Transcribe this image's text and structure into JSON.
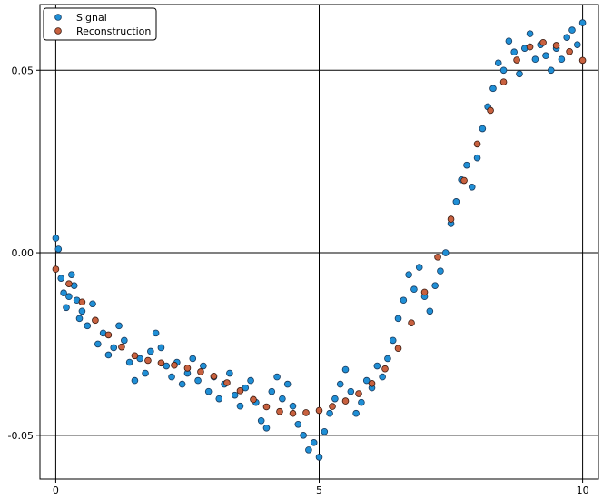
{
  "chart_data": {
    "type": "scatter",
    "title": "",
    "xlabel": "",
    "ylabel": "",
    "xlim": [
      -0.3,
      10.3
    ],
    "ylim": [
      -0.062,
      0.068
    ],
    "x_ticks": [
      0,
      5,
      10
    ],
    "x_tick_labels": [
      "0",
      "5",
      "10"
    ],
    "y_ticks": [
      -0.05,
      0.0,
      0.05
    ],
    "y_tick_labels": [
      "-0.05",
      "0.00",
      "0.05"
    ],
    "grid": true,
    "legend_position": "top-left",
    "series": [
      {
        "name": "Signal",
        "color": "#1f8fd6",
        "x": [
          0.0,
          0.05,
          0.1,
          0.15,
          0.2,
          0.25,
          0.3,
          0.35,
          0.4,
          0.45,
          0.5,
          0.6,
          0.7,
          0.8,
          0.9,
          1.0,
          1.1,
          1.2,
          1.3,
          1.4,
          1.5,
          1.6,
          1.7,
          1.8,
          1.9,
          2.0,
          2.1,
          2.2,
          2.3,
          2.4,
          2.5,
          2.6,
          2.7,
          2.8,
          2.9,
          3.0,
          3.1,
          3.2,
          3.3,
          3.4,
          3.5,
          3.6,
          3.7,
          3.8,
          3.9,
          4.0,
          4.1,
          4.2,
          4.3,
          4.4,
          4.5,
          4.6,
          4.7,
          4.8,
          4.9,
          5.0,
          5.1,
          5.2,
          5.3,
          5.4,
          5.5,
          5.6,
          5.7,
          5.8,
          5.9,
          6.0,
          6.1,
          6.2,
          6.3,
          6.4,
          6.5,
          6.6,
          6.7,
          6.8,
          6.9,
          7.0,
          7.1,
          7.2,
          7.3,
          7.4,
          7.5,
          7.6,
          7.7,
          7.8,
          7.9,
          8.0,
          8.1,
          8.2,
          8.3,
          8.4,
          8.5,
          8.6,
          8.7,
          8.8,
          8.9,
          9.0,
          9.1,
          9.2,
          9.3,
          9.4,
          9.5,
          9.6,
          9.7,
          9.8,
          9.9,
          10.0
        ],
        "y": [
          0.004,
          0.001,
          -0.007,
          -0.011,
          -0.015,
          -0.012,
          -0.006,
          -0.009,
          -0.013,
          -0.018,
          -0.016,
          -0.02,
          -0.014,
          -0.025,
          -0.022,
          -0.028,
          -0.026,
          -0.02,
          -0.024,
          -0.03,
          -0.035,
          -0.029,
          -0.033,
          -0.027,
          -0.022,
          -0.026,
          -0.031,
          -0.034,
          -0.03,
          -0.036,
          -0.033,
          -0.029,
          -0.035,
          -0.031,
          -0.038,
          -0.034,
          -0.04,
          -0.036,
          -0.033,
          -0.039,
          -0.042,
          -0.037,
          -0.035,
          -0.041,
          -0.046,
          -0.048,
          -0.038,
          -0.034,
          -0.04,
          -0.036,
          -0.042,
          -0.047,
          -0.05,
          -0.054,
          -0.052,
          -0.056,
          -0.049,
          -0.044,
          -0.04,
          -0.036,
          -0.032,
          -0.038,
          -0.044,
          -0.041,
          -0.035,
          -0.037,
          -0.031,
          -0.034,
          -0.029,
          -0.024,
          -0.018,
          -0.013,
          -0.006,
          -0.01,
          -0.004,
          -0.012,
          -0.016,
          -0.009,
          -0.005,
          0.0,
          0.008,
          0.014,
          0.02,
          0.024,
          0.018,
          0.026,
          0.034,
          0.04,
          0.045,
          0.052,
          0.05,
          0.058,
          0.055,
          0.049,
          0.056,
          0.06,
          0.053,
          0.057,
          0.054,
          0.05,
          0.056,
          0.053,
          0.059,
          0.061,
          0.057,
          0.063
        ]
      },
      {
        "name": "Reconstruction",
        "color": "#c8613f",
        "x": [
          0.0,
          0.25,
          0.5,
          0.75,
          1.0,
          1.25,
          1.5,
          1.75,
          2.0,
          2.25,
          2.5,
          2.75,
          3.0,
          3.25,
          3.5,
          3.75,
          4.0,
          4.25,
          4.5,
          4.75,
          5.0,
          5.25,
          5.5,
          5.75,
          6.0,
          6.25,
          6.5,
          6.75,
          7.0,
          7.25,
          7.5,
          7.75,
          8.0,
          8.25,
          8.5,
          8.75,
          9.0,
          9.25,
          9.5,
          9.75,
          10.0
        ],
        "y": [
          -0.0045,
          -0.0085,
          -0.0135,
          -0.0185,
          -0.0225,
          -0.0258,
          -0.0282,
          -0.0295,
          -0.0302,
          -0.0308,
          -0.0316,
          -0.0326,
          -0.0338,
          -0.0356,
          -0.0378,
          -0.0402,
          -0.0422,
          -0.0435,
          -0.044,
          -0.0438,
          -0.0432,
          -0.0421,
          -0.0406,
          -0.0386,
          -0.0358,
          -0.0318,
          -0.0262,
          -0.0192,
          -0.0108,
          -0.0012,
          0.0092,
          0.0198,
          0.0298,
          0.039,
          0.0468,
          0.0528,
          0.0564,
          0.0576,
          0.0568,
          0.0551,
          0.0527
        ]
      }
    ]
  }
}
